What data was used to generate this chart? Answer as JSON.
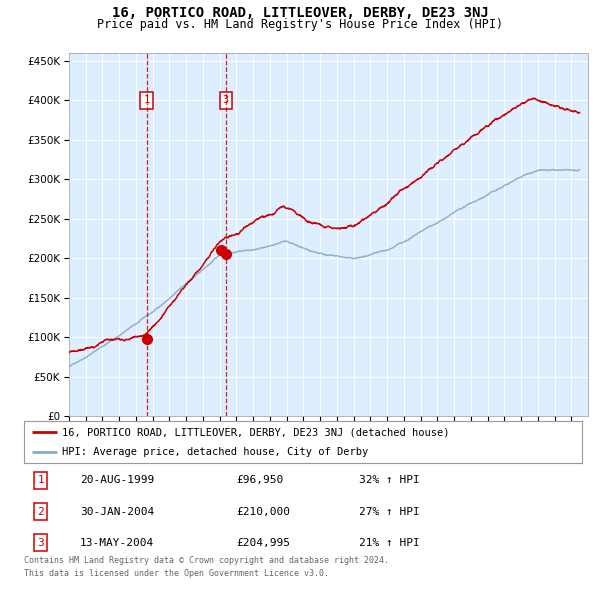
{
  "title": "16, PORTICO ROAD, LITTLEOVER, DERBY, DE23 3NJ",
  "subtitle": "Price paid vs. HM Land Registry's House Price Index (HPI)",
  "legend_line1": "16, PORTICO ROAD, LITTLEOVER, DERBY, DE23 3NJ (detached house)",
  "legend_line2": "HPI: Average price, detached house, City of Derby",
  "footer1": "Contains HM Land Registry data © Crown copyright and database right 2024.",
  "footer2": "This data is licensed under the Open Government Licence v3.0.",
  "transactions": [
    {
      "num": 1,
      "date": "20-AUG-1999",
      "price": "£96,950",
      "pct": "32% ↑ HPI",
      "year": 1999.63,
      "val": 96950
    },
    {
      "num": 2,
      "date": "30-JAN-2004",
      "price": "£210,000",
      "pct": "27% ↑ HPI",
      "year": 2004.08,
      "val": 210000
    },
    {
      "num": 3,
      "date": "13-MAY-2004",
      "price": "£204,995",
      "pct": "21% ↑ HPI",
      "year": 2004.37,
      "val": 204995
    }
  ],
  "vlines": [
    1999.63,
    2004.37
  ],
  "vline_labels": [
    1,
    3
  ],
  "red_line_color": "#cc0000",
  "blue_line_color": "#88aacc",
  "fig_bg_color": "#ffffff",
  "plot_bg_color": "#ddeeff",
  "grid_color": "#ffffff",
  "ylim": [
    0,
    460000
  ],
  "yticks": [
    0,
    50000,
    100000,
    150000,
    200000,
    250000,
    300000,
    350000,
    400000,
    450000
  ],
  "xlim": [
    1995,
    2026
  ]
}
